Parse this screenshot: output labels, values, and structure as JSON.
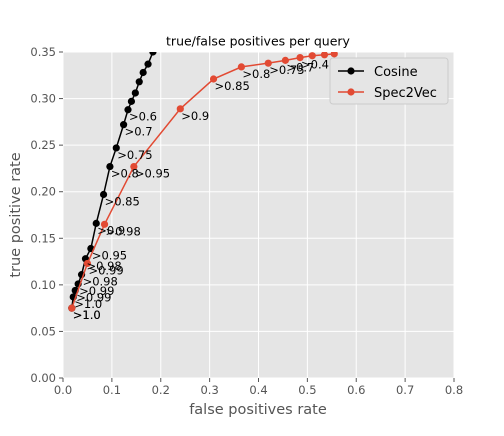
{
  "chart_data": {
    "type": "line",
    "title": "true/false positives per query",
    "xlabel": "false positives rate",
    "ylabel": "true positive rate",
    "xlim": [
      0.0,
      0.8
    ],
    "ylim": [
      0.0,
      0.35
    ],
    "xticks": [
      "0.0",
      "0.1",
      "0.2",
      "0.3",
      "0.4",
      "0.5",
      "0.6",
      "0.7",
      "0.8"
    ],
    "yticks": [
      "0.00",
      "0.05",
      "0.10",
      "0.15",
      "0.20",
      "0.25",
      "0.30",
      "0.35"
    ],
    "grid": true,
    "background": "#e5e5e5",
    "legend_position": "top-right",
    "series": [
      {
        "name": "Cosine",
        "color": "#000000",
        "x": [
          0.018,
          0.021,
          0.025,
          0.031,
          0.038,
          0.046,
          0.057,
          0.068,
          0.083,
          0.096,
          0.109,
          0.124,
          0.133,
          0.14,
          0.148,
          0.156,
          0.164,
          0.174,
          0.184,
          0.2
        ],
        "y": [
          0.075,
          0.087,
          0.094,
          0.101,
          0.111,
          0.128,
          0.139,
          0.166,
          0.197,
          0.227,
          0.247,
          0.272,
          0.288,
          0.297,
          0.306,
          0.318,
          0.328,
          0.337,
          0.35,
          0.355
        ],
        "labels": [
          ">1.0",
          ">1.0",
          ">0.99",
          ">0.99",
          ">0.98",
          ">0.98",
          ">0.95",
          ">0.9",
          ">0.85",
          ">0.8",
          ">0.75",
          ">0.7",
          ">0.6"
        ]
      },
      {
        "name": "Spec2Vec",
        "color": "#e24a33",
        "x": [
          0.018,
          0.05,
          0.085,
          0.145,
          0.24,
          0.308,
          0.365,
          0.42,
          0.455,
          0.485,
          0.51,
          0.535,
          0.555
        ],
        "y": [
          0.075,
          0.123,
          0.165,
          0.227,
          0.289,
          0.321,
          0.334,
          0.338,
          0.341,
          0.344,
          0.346,
          0.347,
          0.348
        ],
        "labels": [
          ">1.0",
          ">0.99",
          ">0.98",
          ">0.95",
          ">0.9",
          ">0.85",
          ">0.8",
          ">0.75",
          ">0.7",
          ">0.4"
        ]
      }
    ]
  }
}
